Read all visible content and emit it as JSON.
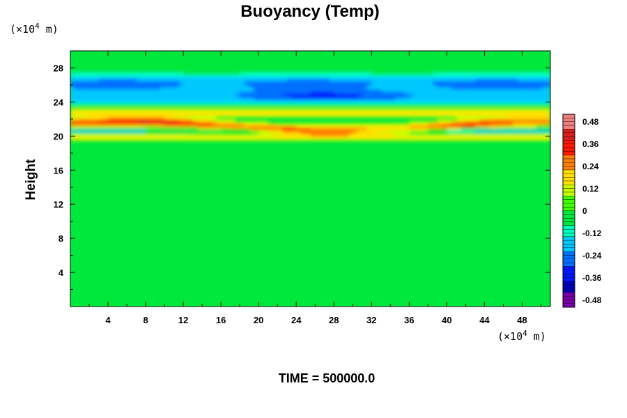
{
  "chart_data": {
    "type": "heatmap",
    "title": "Buoyancy (Temp)",
    "ylabel": "Height",
    "xlabel": "",
    "x_unit_prefix": "(×10",
    "x_unit_exp": "4",
    "x_unit_suffix": " m)",
    "y_unit_prefix": "(×10",
    "y_unit_exp": "4",
    "y_unit_suffix": " m)",
    "xlim": [
      0,
      51
    ],
    "ylim": [
      0,
      30
    ],
    "xticks": [
      4,
      8,
      12,
      16,
      20,
      24,
      28,
      32,
      36,
      40,
      44,
      48
    ],
    "yticks": [
      4,
      8,
      12,
      16,
      20,
      24,
      28
    ],
    "colorbar": {
      "range": [
        -0.52,
        0.52
      ],
      "ticks": [
        0.48,
        0.36,
        0.24,
        0.12,
        0,
        -0.12,
        -0.24,
        -0.36,
        -0.48
      ],
      "tick_labels": [
        "0.48",
        "0.36",
        "0.24",
        "0.12",
        "0",
        "-0.12",
        "-0.24",
        "-0.36",
        "-0.48"
      ],
      "colors": [
        "#7a00a8",
        "#0000b8",
        "#0018ff",
        "#0070ff",
        "#00c8ff",
        "#00ffc0",
        "#00e83c",
        "#40ff00",
        "#c8ff00",
        "#ffe000",
        "#ff8000",
        "#ff1800",
        "#d82020",
        "#f08080"
      ]
    },
    "field_features": [
      {
        "name": "red warm band",
        "height_center": 21.2,
        "amplitude": 0.42,
        "note": "wavy, peak values near x=20-22 and x=30-34"
      },
      {
        "name": "yellow band above",
        "height_center": 22.8,
        "amplitude": 0.18
      },
      {
        "name": "cold cyan/blue layer",
        "height_range": [
          23.5,
          28
        ],
        "amplitude": -0.22
      },
      {
        "name": "blue core",
        "height_center": 26.2,
        "amplitude": -0.28
      },
      {
        "name": "background below 20",
        "value": 0.02
      }
    ]
  },
  "footer": {
    "time_label": "TIME = 500000.0"
  }
}
